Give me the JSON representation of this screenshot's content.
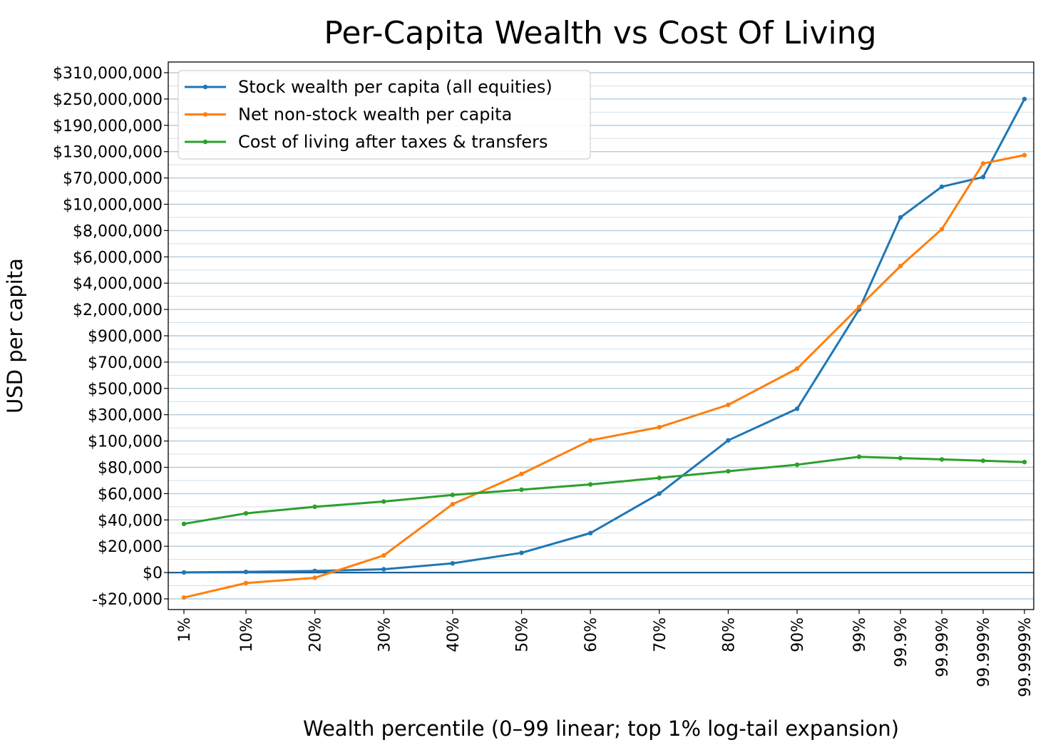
{
  "chart_data": {
    "type": "line",
    "title": "Per-Capita Wealth vs Cost Of Living",
    "xlabel": "Wealth percentile (0–99 linear; top 1% log-tail expansion)",
    "ylabel": "USD per capita",
    "categories": [
      "1%",
      "10%",
      "20%",
      "30%",
      "40%",
      "50%",
      "60%",
      "70%",
      "80%",
      "90%",
      "99%",
      "99.9%",
      "99.99%",
      "99.999%",
      "99.9999%"
    ],
    "y_tick_labels": [
      "-$20,000",
      "$0",
      "$20,000",
      "$40,000",
      "$60,000",
      "$80,000",
      "$100,000",
      "$300,000",
      "$500,000",
      "$700,000",
      "$900,000",
      "$2,000,000",
      "$4,000,000",
      "$6,000,000",
      "$8,000,000",
      "$10,000,000",
      "$70,000,000",
      "$130,000,000",
      "$190,000,000",
      "$250,000,000",
      "$310,000,000"
    ],
    "y_tick_values": [
      -20000,
      0,
      20000,
      40000,
      60000,
      80000,
      100000,
      300000,
      500000,
      700000,
      900000,
      2000000,
      4000000,
      6000000,
      8000000,
      10000000,
      70000000,
      130000000,
      190000000,
      250000000,
      310000000
    ],
    "y_scale": "piecewise-linear",
    "grid": "horizontal",
    "legend_position": "top-left",
    "zero_line": true,
    "series": [
      {
        "name": "Stock wealth per capita (all equities)",
        "color": "#1f77b4",
        "values": [
          100,
          500,
          1200,
          2500,
          7000,
          15000,
          30000,
          60000,
          105000,
          345000,
          2000000,
          9000000,
          50000000,
          72000000,
          250000000
        ]
      },
      {
        "name": "Net non-stock wealth per capita",
        "color": "#ff7f0e",
        "values": [
          -19000,
          -8000,
          -4000,
          13000,
          52000,
          75000,
          105000,
          205000,
          375000,
          650000,
          2200000,
          5300000,
          8100000,
          103000000,
          122000000
        ]
      },
      {
        "name": "Cost of living after taxes & transfers",
        "color": "#2ca02c",
        "values": [
          37000,
          45000,
          50000,
          54000,
          59000,
          63000,
          67000,
          72000,
          77000,
          82000,
          88000,
          87000,
          86000,
          85000,
          84000
        ]
      }
    ]
  }
}
